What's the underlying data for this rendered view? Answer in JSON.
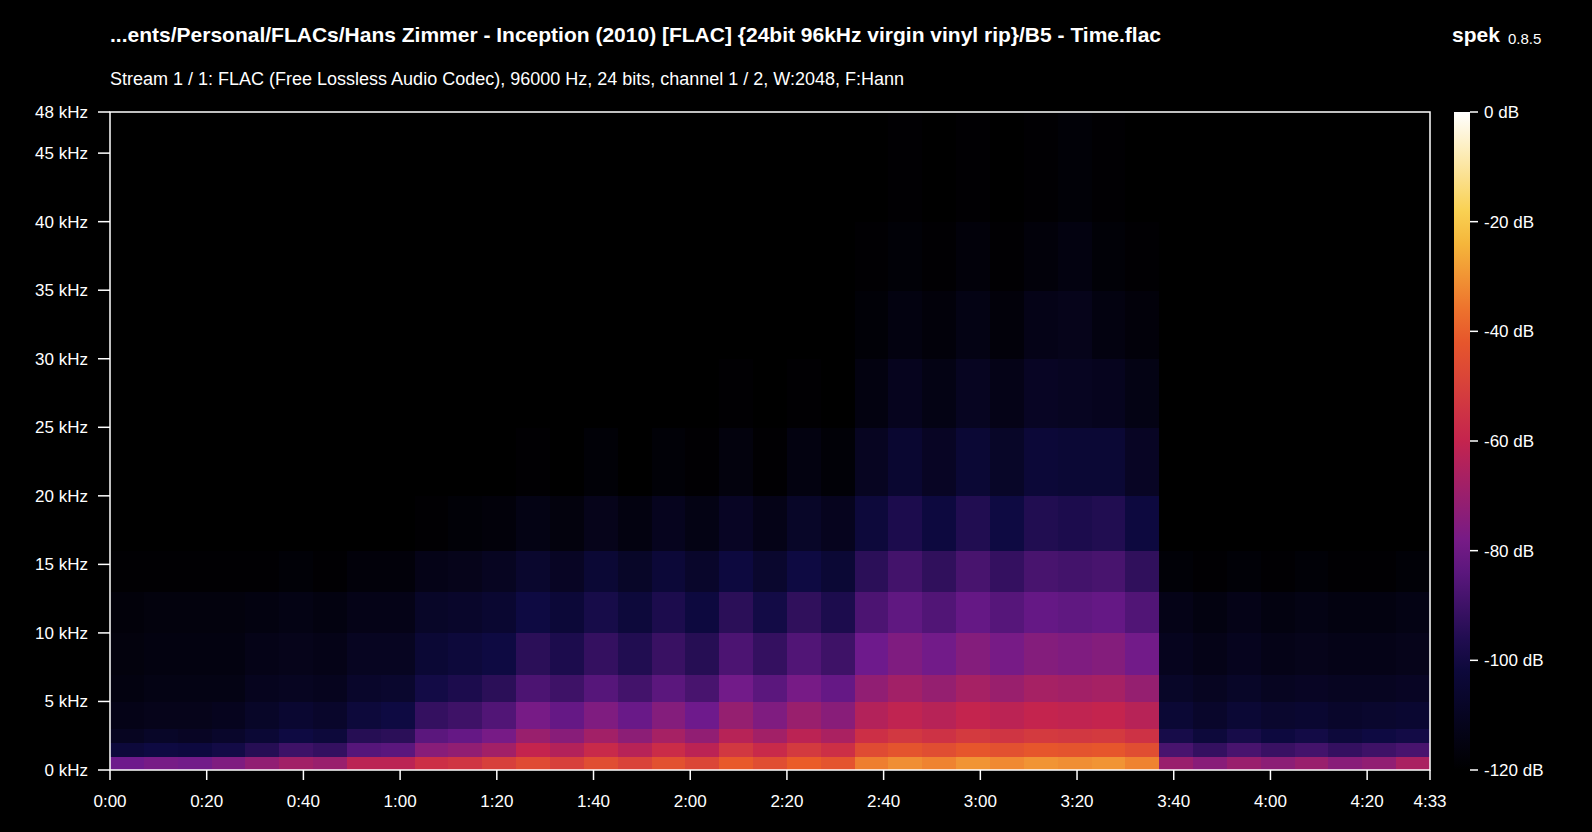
{
  "chart_data": {
    "type": "heatmap",
    "title": "...ents/Personal/FLACs/Hans Zimmer - Inception (2010) [FLAC] {24bit 96kHz virgin vinyl rip}/B5 - Time.flac",
    "subtitle": "Stream 1 / 1: FLAC (Free Lossless Audio Codec), 96000 Hz, 24 bits, channel 1 / 2, W:2048, F:Hann",
    "annotations": [
      "spek",
      "0.8.5"
    ],
    "xlim": [
      0,
      273
    ],
    "ylim": [
      0,
      48
    ],
    "xticks": [
      {
        "value": 0,
        "label": "0:00"
      },
      {
        "value": 20,
        "label": "0:20"
      },
      {
        "value": 40,
        "label": "0:40"
      },
      {
        "value": 60,
        "label": "1:00"
      },
      {
        "value": 80,
        "label": "1:20"
      },
      {
        "value": 100,
        "label": "1:40"
      },
      {
        "value": 120,
        "label": "2:00"
      },
      {
        "value": 140,
        "label": "2:20"
      },
      {
        "value": 160,
        "label": "2:40"
      },
      {
        "value": 180,
        "label": "3:00"
      },
      {
        "value": 200,
        "label": "3:20"
      },
      {
        "value": 220,
        "label": "3:40"
      },
      {
        "value": 240,
        "label": "4:00"
      },
      {
        "value": 260,
        "label": "4:20"
      },
      {
        "value": 273,
        "label": "4:33"
      }
    ],
    "yticks": [
      {
        "value": 0,
        "label": "0 kHz"
      },
      {
        "value": 5,
        "label": "5 kHz"
      },
      {
        "value": 10,
        "label": "10 kHz"
      },
      {
        "value": 15,
        "label": "15 kHz"
      },
      {
        "value": 20,
        "label": "20 kHz"
      },
      {
        "value": 25,
        "label": "25 kHz"
      },
      {
        "value": 30,
        "label": "30 kHz"
      },
      {
        "value": 35,
        "label": "35 kHz"
      },
      {
        "value": 40,
        "label": "40 kHz"
      },
      {
        "value": 45,
        "label": "45 kHz"
      },
      {
        "value": 48,
        "label": "48 kHz"
      }
    ],
    "x_bins": [
      0,
      7,
      14,
      21,
      28,
      35,
      42,
      49,
      56,
      63,
      70,
      77,
      84,
      91,
      98,
      105,
      112,
      119,
      126,
      133,
      140,
      147,
      154,
      161,
      168,
      175,
      182,
      189,
      196,
      203,
      210,
      217,
      224,
      231,
      238,
      245,
      252,
      259,
      266,
      273
    ],
    "y_bins": [
      0,
      1,
      2,
      3,
      5,
      7,
      10,
      13,
      16,
      20,
      25,
      30,
      35,
      40,
      48
    ],
    "values": [
      [
        -80,
        -102,
        -110,
        -113,
        -115,
        -116,
        -117,
        -119,
        -120,
        -120,
        -120,
        -120,
        -120,
        -120
      ],
      [
        -78,
        -100,
        -108,
        -112,
        -114,
        -115,
        -116,
        -119,
        -120,
        -120,
        -120,
        -120,
        -120,
        -120
      ],
      [
        -79,
        -101,
        -109,
        -112,
        -114,
        -115,
        -116,
        -119,
        -120,
        -120,
        -120,
        -120,
        -120,
        -120
      ],
      [
        -76,
        -99,
        -107,
        -111,
        -114,
        -115,
        -116,
        -119,
        -120,
        -120,
        -120,
        -120,
        -120,
        -120
      ],
      [
        -72,
        -95,
        -104,
        -108,
        -111,
        -113,
        -115,
        -119,
        -120,
        -120,
        -120,
        -120,
        -120,
        -120
      ],
      [
        -68,
        -90,
        -100,
        -105,
        -110,
        -112,
        -114,
        -118,
        -120,
        -120,
        -120,
        -120,
        -120,
        -120
      ],
      [
        -70,
        -92,
        -102,
        -107,
        -111,
        -113,
        -115,
        -119,
        -120,
        -120,
        -120,
        -120,
        -120,
        -120
      ],
      [
        -62,
        -85,
        -95,
        -102,
        -107,
        -110,
        -113,
        -117,
        -120,
        -120,
        -120,
        -120,
        -120,
        -120
      ],
      [
        -62,
        -84,
        -94,
        -100,
        -106,
        -110,
        -113,
        -117,
        -120,
        -120,
        -120,
        -120,
        -120,
        -120
      ],
      [
        -56,
        -74,
        -84,
        -92,
        -99,
        -104,
        -108,
        -113,
        -119,
        -120,
        -120,
        -120,
        -120,
        -120
      ],
      [
        -54,
        -72,
        -82,
        -90,
        -97,
        -102,
        -107,
        -112,
        -118,
        -120,
        -120,
        -120,
        -120,
        -120
      ],
      [
        -50,
        -68,
        -78,
        -86,
        -94,
        -100,
        -105,
        -110,
        -117,
        -120,
        -120,
        -120,
        -120,
        -120
      ],
      [
        -46,
        -60,
        -70,
        -78,
        -87,
        -94,
        -100,
        -106,
        -114,
        -119,
        -120,
        -120,
        -120,
        -120
      ],
      [
        -50,
        -64,
        -74,
        -82,
        -90,
        -97,
        -103,
        -109,
        -116,
        -120,
        -120,
        -120,
        -120,
        -120
      ],
      [
        -45,
        -58,
        -68,
        -76,
        -85,
        -92,
        -98,
        -104,
        -112,
        -118,
        -120,
        -120,
        -120,
        -120
      ],
      [
        -49,
        -63,
        -73,
        -81,
        -89,
        -96,
        -102,
        -108,
        -115,
        -120,
        -120,
        -120,
        -120,
        -120
      ],
      [
        -44,
        -57,
        -67,
        -75,
        -84,
        -91,
        -97,
        -103,
        -111,
        -118,
        -120,
        -120,
        -120,
        -120
      ],
      [
        -48,
        -62,
        -72,
        -80,
        -88,
        -95,
        -101,
        -107,
        -114,
        -119,
        -120,
        -120,
        -120,
        -120
      ],
      [
        -41,
        -53,
        -63,
        -71,
        -79,
        -87,
        -94,
        -101,
        -109,
        -116,
        -119,
        -120,
        -120,
        -120
      ],
      [
        -45,
        -58,
        -68,
        -76,
        -84,
        -92,
        -99,
        -106,
        -113,
        -119,
        -120,
        -120,
        -120,
        -120
      ],
      [
        -40,
        -52,
        -62,
        -70,
        -78,
        -86,
        -93,
        -100,
        -108,
        -115,
        -119,
        -120,
        -120,
        -120
      ],
      [
        -43,
        -56,
        -66,
        -74,
        -82,
        -90,
        -97,
        -104,
        -111,
        -118,
        -120,
        -120,
        -120,
        -120
      ],
      [
        -34,
        -46,
        -56,
        -64,
        -72,
        -80,
        -87,
        -94,
        -102,
        -110,
        -115,
        -118,
        -119,
        -120
      ],
      [
        -31,
        -43,
        -53,
        -61,
        -68,
        -76,
        -83,
        -89,
        -97,
        -105,
        -111,
        -115,
        -118,
        -119
      ],
      [
        -33,
        -45,
        -55,
        -63,
        -71,
        -79,
        -86,
        -93,
        -101,
        -109,
        -114,
        -117,
        -119,
        -120
      ],
      [
        -30,
        -42,
        -52,
        -60,
        -67,
        -75,
        -82,
        -88,
        -96,
        -104,
        -110,
        -114,
        -117,
        -119
      ],
      [
        -32,
        -44,
        -54,
        -62,
        -70,
        -78,
        -85,
        -92,
        -100,
        -108,
        -113,
        -117,
        -119,
        -120
      ],
      [
        -30,
        -42,
        -52,
        -60,
        -67,
        -75,
        -82,
        -88,
        -96,
        -103,
        -109,
        -113,
        -117,
        -119
      ],
      [
        -31,
        -43,
        -53,
        -61,
        -68,
        -76,
        -83,
        -89,
        -97,
        -104,
        -110,
        -112,
        -115,
        -118
      ],
      [
        -30,
        -42,
        -52,
        -60,
        -67,
        -75,
        -82,
        -88,
        -96,
        -104,
        -111,
        -115,
        -118,
        -119
      ],
      [
        -33,
        -45,
        -55,
        -63,
        -71,
        -79,
        -86,
        -93,
        -101,
        -109,
        -114,
        -117,
        -119,
        -120
      ],
      [
        -70,
        -88,
        -98,
        -104,
        -108,
        -111,
        -113,
        -118,
        -120,
        -120,
        -120,
        -120,
        -120,
        -120
      ],
      [
        -74,
        -92,
        -102,
        -107,
        -110,
        -113,
        -115,
        -119,
        -120,
        -120,
        -120,
        -120,
        -120,
        -120
      ],
      [
        -70,
        -88,
        -98,
        -104,
        -108,
        -111,
        -113,
        -118,
        -120,
        -120,
        -120,
        -120,
        -120,
        -120
      ],
      [
        -73,
        -91,
        -101,
        -106,
        -110,
        -113,
        -115,
        -119,
        -120,
        -120,
        -120,
        -120,
        -120,
        -120
      ],
      [
        -70,
        -89,
        -99,
        -105,
        -109,
        -112,
        -114,
        -118,
        -120,
        -120,
        -120,
        -120,
        -120,
        -120
      ],
      [
        -74,
        -92,
        -102,
        -107,
        -110,
        -113,
        -115,
        -119,
        -120,
        -120,
        -120,
        -120,
        -120,
        -120
      ],
      [
        -72,
        -90,
        -100,
        -106,
        -110,
        -113,
        -115,
        -119,
        -120,
        -120,
        -120,
        -120,
        -120,
        -120
      ],
      [
        -66,
        -88,
        -99,
        -105,
        -109,
        -112,
        -114,
        -118,
        -120,
        -120,
        -120,
        -120,
        -120,
        -120
      ]
    ],
    "colorbar": {
      "range": [
        -120,
        0
      ],
      "ticks": [
        {
          "value": 0,
          "label": "0 dB"
        },
        {
          "value": -20,
          "label": "-20 dB"
        },
        {
          "value": -40,
          "label": "-40 dB"
        },
        {
          "value": -60,
          "label": "-60 dB"
        },
        {
          "value": -80,
          "label": "-80 dB"
        },
        {
          "value": -100,
          "label": "-100 dB"
        },
        {
          "value": -120,
          "label": "-120 dB"
        }
      ]
    }
  }
}
